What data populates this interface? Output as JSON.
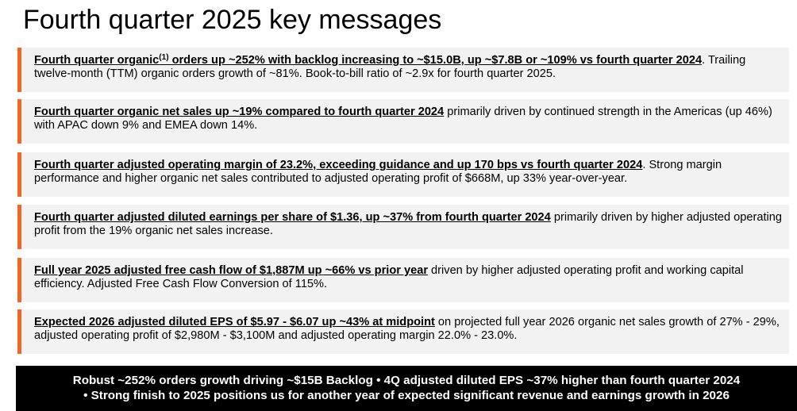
{
  "slide": {
    "title": "Fourth quarter 2025 key messages",
    "accent_color": "#f26522",
    "panel_color": "#f2f2f2"
  },
  "messages": [
    {
      "headline_pre": "Fourth quarter organic",
      "superscript": "(1)",
      "headline_post": " orders up ~252% with backlog increasing to ~$15.0B, up ~$7.8B or ~109% vs fourth quarter 2024",
      "body": ". Trailing twelve-month (TTM) organic orders growth of ~81%. Book-to-bill ratio of ~2.9x for fourth quarter 2025."
    },
    {
      "headline": "Fourth quarter organic net sales up ~19% compared to fourth quarter 2024",
      "body": " primarily driven by continued strength in the Americas (up 46%) with APAC down 9% and EMEA down 14%."
    },
    {
      "headline": "Fourth quarter adjusted operating margin of 23.2%, exceeding guidance and up 170 bps vs fourth quarter 2024",
      "body": ".  Strong margin performance and higher organic net sales contributed to adjusted operating profit of $668M, up 33% year-over-year."
    },
    {
      "headline": "Fourth quarter adjusted diluted earnings per share of $1.36, up ~37% from fourth quarter 2024",
      "body": " primarily driven by higher adjusted operating profit from the 19% organic net sales increase."
    },
    {
      "headline": "Full year 2025 adjusted free cash flow of $1,887M up ~66% vs prior year",
      "body": " driven by higher adjusted operating profit and working capital efficiency. Adjusted Free Cash Flow Conversion of 115%."
    },
    {
      "headline": "Expected 2026 adjusted diluted EPS of $5.97 - $6.07 up ~43% at midpoint",
      "body": " on projected full year 2026 organic net sales growth of 27% - 29%, adjusted operating profit of $2,980M - $3,100M and adjusted operating margin 22.0% - 23.0%."
    }
  ],
  "footer": {
    "line1": "Robust ~252% orders growth driving ~$15B Backlog • 4Q adjusted diluted EPS ~37% higher than fourth quarter 2024",
    "line2": "• Strong finish to 2025 positions us for another year of expected significant revenue and earnings growth in 2026"
  }
}
